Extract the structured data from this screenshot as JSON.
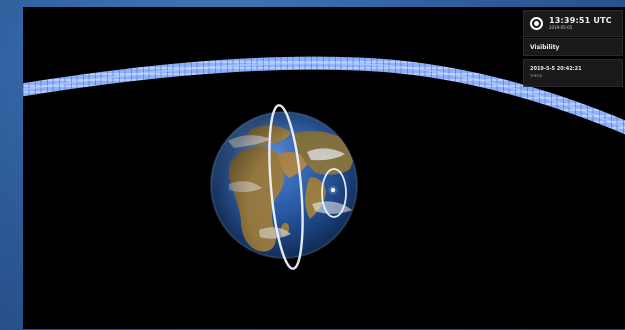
{
  "clock": {
    "time_text": "13:39:51 UTC",
    "date_text": "2019-05-05"
  },
  "visibility": {
    "title": "Visibility"
  },
  "event": {
    "datetime": "2019-5-5 20:42:21",
    "location": "THEOS"
  },
  "scene": {
    "background": "#000000",
    "orbit_band_color": "#8fb3ff",
    "orbit_ring_color": "#e8f0ff",
    "ocean_color": "#2d63b3",
    "land_color": "#a1874f",
    "cloud_color": "#f3f5f7"
  }
}
